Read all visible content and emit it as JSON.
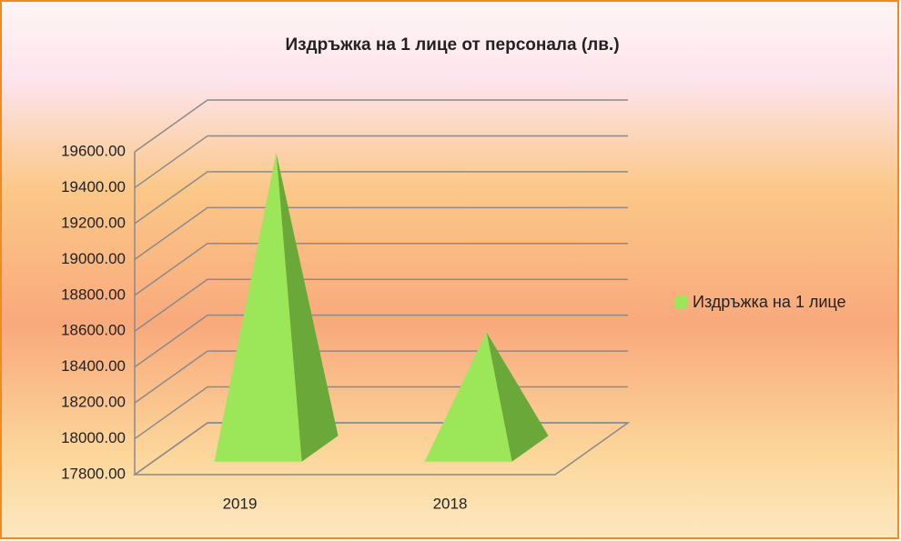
{
  "chart_data": {
    "type": "pyramid3d",
    "title": "Издръжка на 1 лице от персонала (лв.)",
    "categories": [
      "2019",
      "2018"
    ],
    "series": [
      {
        "name": "Издръжка на 1 лице",
        "color": "#9ce65a",
        "values": [
          19450,
          18450
        ]
      }
    ],
    "ylim": [
      17800,
      19600
    ],
    "yticks": [
      {
        "value": 17800,
        "label": "17800.00"
      },
      {
        "value": 18000,
        "label": "18000.00"
      },
      {
        "value": 18200,
        "label": "18200.00"
      },
      {
        "value": 18400,
        "label": "18400.00"
      },
      {
        "value": 18600,
        "label": "18600.00"
      },
      {
        "value": 18800,
        "label": "18800.00"
      },
      {
        "value": 19000,
        "label": "19000.00"
      },
      {
        "value": 19200,
        "label": "19200.00"
      },
      {
        "value": 19400,
        "label": "19400.00"
      },
      {
        "value": 19600,
        "label": "19600.00"
      }
    ],
    "grid": true,
    "legend": "right"
  }
}
